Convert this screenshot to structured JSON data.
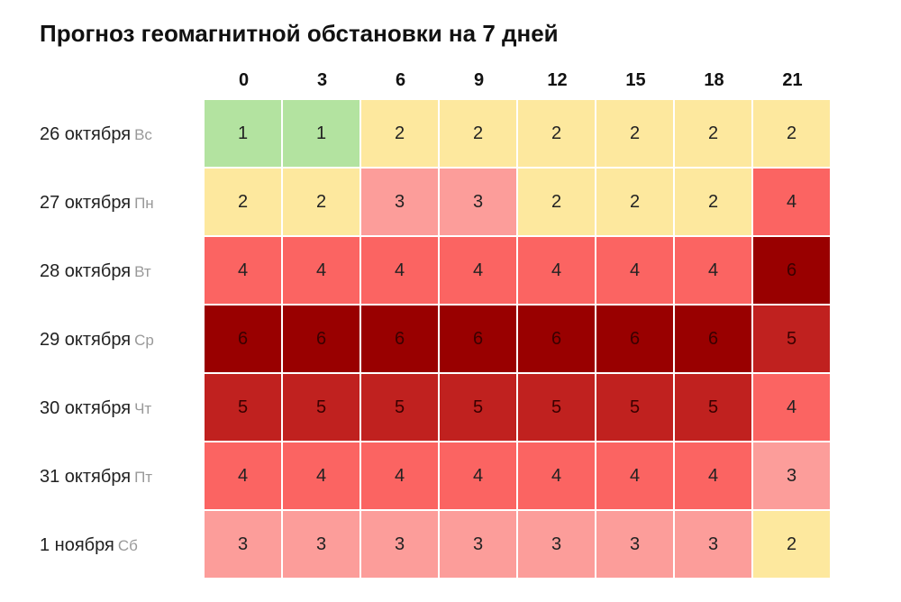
{
  "chart_data": {
    "type": "heatmap",
    "title": "Прогноз геомагнитной обстановки на 7 дней",
    "columns": [
      "0",
      "3",
      "6",
      "9",
      "12",
      "15",
      "18",
      "21"
    ],
    "rows": [
      {
        "date": "26 октября",
        "dow": "Вс",
        "values": [
          1,
          1,
          2,
          2,
          2,
          2,
          2,
          2
        ]
      },
      {
        "date": "27 октября",
        "dow": "Пн",
        "values": [
          2,
          2,
          3,
          3,
          2,
          2,
          2,
          4
        ]
      },
      {
        "date": "28 октября",
        "dow": "Вт",
        "values": [
          4,
          4,
          4,
          4,
          4,
          4,
          4,
          6
        ]
      },
      {
        "date": "29 октября",
        "dow": "Ср",
        "values": [
          6,
          6,
          6,
          6,
          6,
          6,
          6,
          5
        ]
      },
      {
        "date": "30 октября",
        "dow": "Чт",
        "values": [
          5,
          5,
          5,
          5,
          5,
          5,
          5,
          4
        ]
      },
      {
        "date": "31 октября",
        "dow": "Пт",
        "values": [
          4,
          4,
          4,
          4,
          4,
          4,
          4,
          3
        ]
      },
      {
        "date": "1 ноября",
        "dow": "Сб",
        "values": [
          3,
          3,
          3,
          3,
          3,
          3,
          3,
          2
        ]
      }
    ],
    "colors": {
      "1": "#b3e3a0",
      "2": "#fde89e",
      "3": "#fc9d9a",
      "4": "#fb6462",
      "5": "#c0211f",
      "6": "#990000"
    }
  }
}
